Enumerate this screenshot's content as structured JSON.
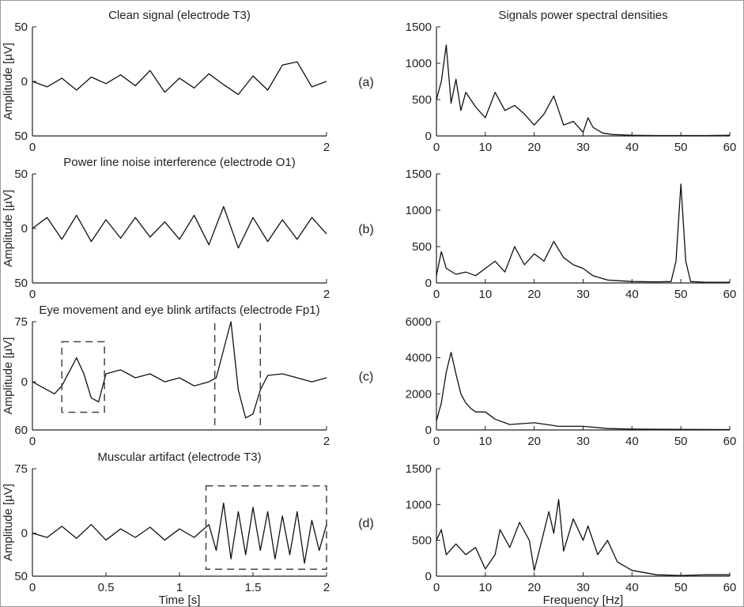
{
  "chart_data": [
    {
      "type": "line",
      "panel": "(a)",
      "title": "Clean signal (electrode T3)",
      "xlabel": "",
      "ylabel": "Amplitude [µV]",
      "xlim": [
        0,
        2
      ],
      "ylim": [
        -50,
        50
      ],
      "xticks": [
        0,
        2
      ],
      "yticks": [
        50,
        0,
        -50
      ],
      "ytick_labels": [
        "50",
        "0",
        "50"
      ],
      "x": [
        0,
        0.1,
        0.2,
        0.3,
        0.4,
        0.5,
        0.6,
        0.7,
        0.8,
        0.9,
        1.0,
        1.1,
        1.2,
        1.3,
        1.4,
        1.5,
        1.6,
        1.7,
        1.8,
        1.9,
        2.0
      ],
      "values": [
        0,
        -5,
        3,
        -8,
        4,
        -2,
        6,
        -4,
        10,
        -10,
        3,
        -6,
        7,
        -3,
        -12,
        5,
        -8,
        15,
        18,
        -5,
        0
      ]
    },
    {
      "type": "line",
      "panel": "(a)",
      "title": "Signals power spectral densities",
      "xlabel": "",
      "ylabel": "",
      "xlim": [
        0,
        60
      ],
      "ylim": [
        0,
        1500
      ],
      "xticks": [
        0,
        10,
        20,
        30,
        40,
        50,
        60
      ],
      "yticks": [
        0,
        500,
        1000,
        1500
      ],
      "x": [
        0,
        1,
        2,
        3,
        4,
        5,
        6,
        8,
        10,
        12,
        14,
        16,
        18,
        20,
        22,
        24,
        26,
        28,
        30,
        31,
        32,
        34,
        36,
        40,
        45,
        50,
        55,
        60
      ],
      "values": [
        500,
        750,
        1250,
        450,
        780,
        350,
        600,
        400,
        250,
        600,
        350,
        420,
        300,
        150,
        300,
        550,
        150,
        200,
        50,
        250,
        120,
        40,
        20,
        10,
        5,
        5,
        5,
        10
      ]
    },
    {
      "type": "line",
      "panel": "(b)",
      "title": "Power line noise interference (electrode O1)",
      "xlabel": "",
      "ylabel": "Amplitude [µV]",
      "xlim": [
        0,
        2
      ],
      "ylim": [
        -50,
        50
      ],
      "xticks": [
        0,
        2
      ],
      "yticks": [
        50,
        0,
        -50
      ],
      "ytick_labels": [
        "50",
        "0",
        "50"
      ],
      "x": [
        0,
        0.1,
        0.2,
        0.3,
        0.4,
        0.5,
        0.6,
        0.7,
        0.8,
        0.9,
        1.0,
        1.1,
        1.2,
        1.3,
        1.4,
        1.5,
        1.6,
        1.7,
        1.8,
        1.9,
        2.0
      ],
      "values": [
        0,
        10,
        -10,
        12,
        -12,
        8,
        -9,
        10,
        -8,
        6,
        -10,
        12,
        -15,
        20,
        -18,
        10,
        -12,
        8,
        -10,
        10,
        -5
      ]
    },
    {
      "type": "line",
      "panel": "(b)",
      "title": "",
      "xlabel": "",
      "ylabel": "",
      "xlim": [
        0,
        60
      ],
      "ylim": [
        0,
        1500
      ],
      "xticks": [
        0,
        10,
        20,
        30,
        40,
        50,
        60
      ],
      "yticks": [
        0,
        500,
        1000,
        1500
      ],
      "x": [
        0,
        1,
        2,
        4,
        6,
        8,
        10,
        12,
        14,
        16,
        18,
        20,
        22,
        24,
        26,
        28,
        30,
        32,
        35,
        40,
        45,
        48,
        49,
        50,
        51,
        52,
        55,
        60
      ],
      "values": [
        100,
        430,
        200,
        120,
        150,
        100,
        200,
        300,
        150,
        500,
        250,
        400,
        300,
        570,
        350,
        250,
        200,
        100,
        40,
        20,
        15,
        20,
        300,
        1360,
        300,
        20,
        10,
        10
      ]
    },
    {
      "type": "line",
      "panel": "(c)",
      "title": "Eye movement and eye blink artifacts (electrode Fp1)",
      "xlabel": "",
      "ylabel": "Amplitude [µV]",
      "xlim": [
        0,
        2
      ],
      "ylim": [
        -60,
        75
      ],
      "xticks": [
        0,
        2
      ],
      "yticks": [
        75,
        0,
        -60
      ],
      "ytick_labels": [
        "75",
        "0",
        "60"
      ],
      "x": [
        0,
        0.1,
        0.15,
        0.2,
        0.3,
        0.35,
        0.4,
        0.45,
        0.5,
        0.6,
        0.7,
        0.8,
        0.9,
        1.0,
        1.1,
        1.2,
        1.25,
        1.3,
        1.35,
        1.4,
        1.45,
        1.5,
        1.55,
        1.6,
        1.7,
        1.8,
        1.9,
        2.0
      ],
      "values": [
        0,
        -10,
        -15,
        -5,
        30,
        10,
        -20,
        -25,
        10,
        15,
        5,
        10,
        0,
        5,
        -5,
        0,
        5,
        40,
        75,
        -10,
        -45,
        -40,
        -10,
        8,
        10,
        5,
        0,
        5
      ]
    },
    {
      "type": "line",
      "panel": "(c)",
      "title": "",
      "xlabel": "",
      "ylabel": "",
      "xlim": [
        0,
        60
      ],
      "ylim": [
        0,
        6000
      ],
      "xticks": [
        0,
        10,
        20,
        30,
        40,
        50,
        60
      ],
      "yticks": [
        0,
        2000,
        4000,
        6000
      ],
      "x": [
        0,
        1,
        2,
        3,
        4,
        5,
        6,
        7,
        8,
        10,
        12,
        15,
        20,
        25,
        30,
        35,
        40,
        50,
        60
      ],
      "values": [
        500,
        1500,
        3200,
        4300,
        3100,
        2000,
        1500,
        1200,
        1000,
        1000,
        600,
        300,
        400,
        200,
        200,
        80,
        50,
        30,
        20
      ]
    },
    {
      "type": "line",
      "panel": "(d)",
      "title": "Muscular artifact (electrode T3)",
      "xlabel": "Time [s]",
      "ylabel": "Amplitude [µV]",
      "xlim": [
        0,
        2
      ],
      "ylim": [
        -50,
        75
      ],
      "xticks": [
        0,
        0.5,
        1,
        1.5,
        2
      ],
      "yticks": [
        75,
        0,
        -50
      ],
      "ytick_labels": [
        "75",
        "0",
        "50"
      ],
      "x": [
        0,
        0.1,
        0.2,
        0.3,
        0.4,
        0.5,
        0.6,
        0.7,
        0.8,
        0.9,
        1.0,
        1.1,
        1.2,
        1.25,
        1.3,
        1.35,
        1.4,
        1.45,
        1.5,
        1.55,
        1.6,
        1.65,
        1.7,
        1.75,
        1.8,
        1.85,
        1.9,
        1.95,
        2.0
      ],
      "values": [
        0,
        -5,
        8,
        -6,
        10,
        -8,
        5,
        -5,
        7,
        -8,
        5,
        -5,
        10,
        -20,
        35,
        -30,
        25,
        -25,
        30,
        -20,
        25,
        -30,
        20,
        -25,
        25,
        -35,
        15,
        -20,
        10
      ]
    },
    {
      "type": "line",
      "panel": "(d)",
      "title": "",
      "xlabel": "Frequency [Hz]",
      "ylabel": "",
      "xlim": [
        0,
        60
      ],
      "ylim": [
        0,
        1500
      ],
      "xticks": [
        0,
        10,
        20,
        30,
        40,
        50,
        60
      ],
      "yticks": [
        0,
        500,
        1000,
        1500
      ],
      "x": [
        0,
        1,
        2,
        4,
        6,
        8,
        10,
        12,
        13,
        15,
        17,
        19,
        20,
        21,
        23,
        24,
        25,
        26,
        28,
        30,
        31,
        33,
        35,
        37,
        40,
        45,
        50,
        55,
        60
      ],
      "values": [
        500,
        650,
        300,
        450,
        300,
        400,
        100,
        300,
        650,
        400,
        750,
        500,
        80,
        350,
        900,
        600,
        1070,
        350,
        800,
        500,
        700,
        300,
        500,
        200,
        80,
        20,
        10,
        20,
        20
      ]
    }
  ],
  "panel_labels": [
    "(a)",
    "(b)",
    "(c)",
    "(d)"
  ],
  "colors": {
    "line": "#111111",
    "axis": "#222222",
    "box": "#444444"
  }
}
